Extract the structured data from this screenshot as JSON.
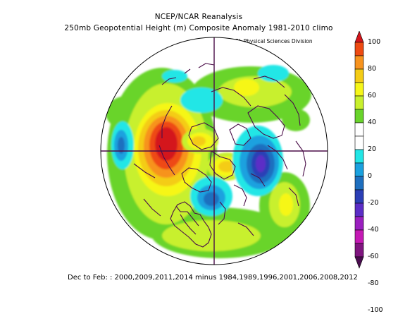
{
  "title_line1": "NCEP/NCAR Reanalysis",
  "title_line2": "250mb Geopotential Height (m) Composite Anomaly 1981-2010 climo",
  "credit": "NOAA/ESRL Physical Sciences Division",
  "footer": "Dec to Feb: : 2000,2009,2011,2014 minus 1984,1989,1996,2001,2006,2008,2012",
  "colorbar": {
    "labels": [
      "100",
      "80",
      "60",
      "40",
      "20",
      "0",
      "-20",
      "-40",
      "-60",
      "-80",
      "-100"
    ],
    "colors": [
      "#d4151b",
      "#ee4a12",
      "#f7931e",
      "#f4cc16",
      "#f6f619",
      "#c8f02d",
      "#69d42b",
      "#ffffff",
      "#ffffff",
      "#22e6e6",
      "#1aa1df",
      "#1e6fbf",
      "#2b3fb6",
      "#5b2dc6",
      "#9a1fbf",
      "#c419b4",
      "#7f157f",
      "#4a0d4f"
    ]
  },
  "map": {
    "projection": "north-polar-stereographic",
    "coastline_color": "#4b0f49",
    "cross_color": "#4b0f49"
  }
}
